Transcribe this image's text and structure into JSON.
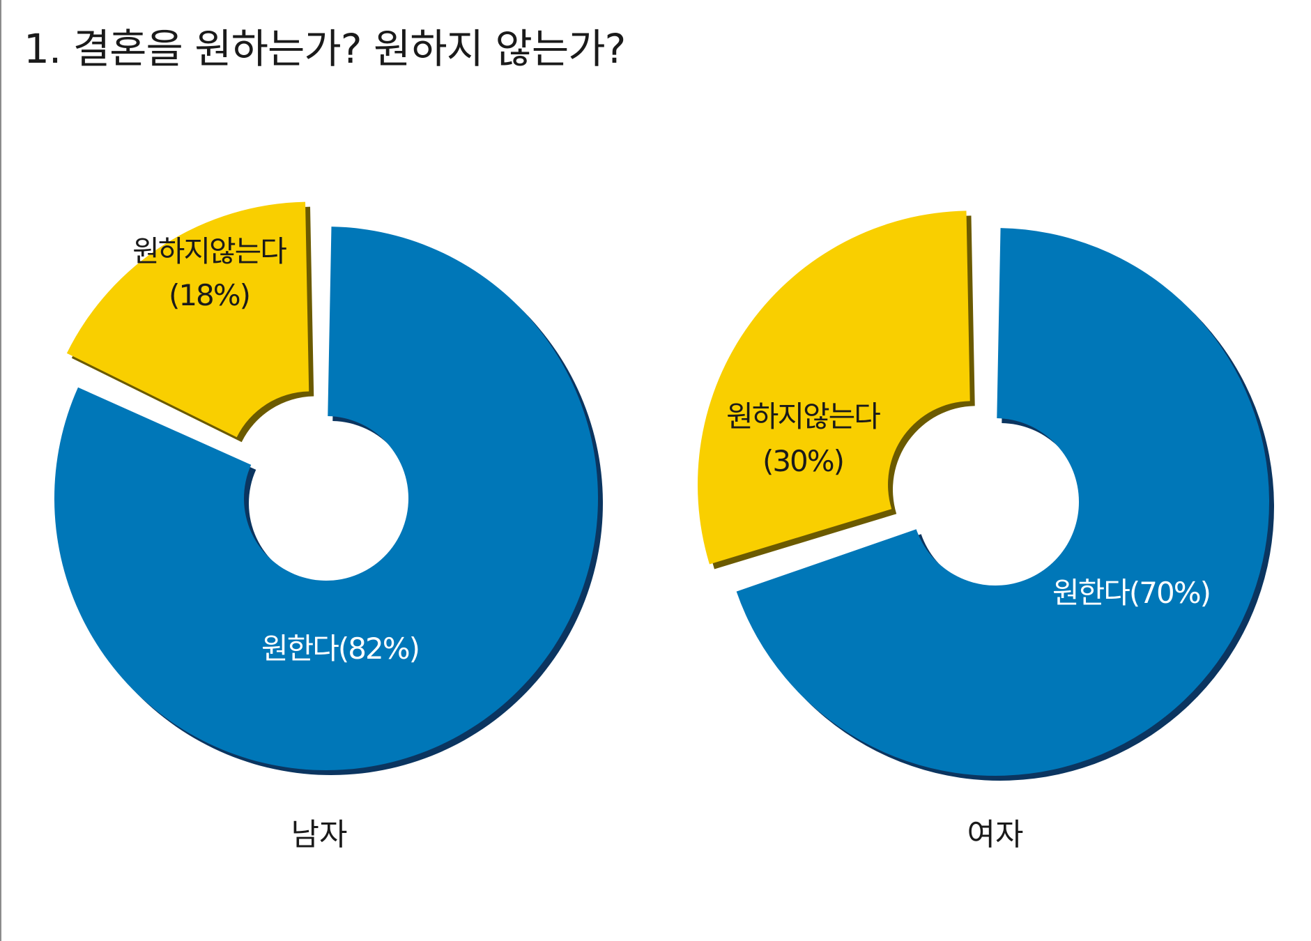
{
  "title": "1. 결혼을 원하는가? 원하지 않는가?",
  "colors": {
    "want": "#0077b8",
    "want_shadow": "#0b3560",
    "not_want": "#f9cf00",
    "not_want_shadow": "#6b5a00",
    "label_light": "#ffffff",
    "label_dark": "#1a1a1a"
  },
  "chart_data": [
    {
      "type": "pie",
      "style": "donut-exploded",
      "caption": "남자",
      "slices": [
        {
          "key": "want",
          "category": "원한다",
          "value": 82,
          "label": "원한다(82%)"
        },
        {
          "key": "not_want",
          "category": "원하지않는다",
          "value": 18,
          "label_line1": "원하지않는다",
          "label_line2": "(18%)"
        }
      ]
    },
    {
      "type": "pie",
      "style": "donut-exploded",
      "caption": "여자",
      "slices": [
        {
          "key": "want",
          "category": "원한다",
          "value": 70,
          "label": "원한다(70%)"
        },
        {
          "key": "not_want",
          "category": "원하지않는다",
          "value": 30,
          "label_line1": "원하지않는다",
          "label_line2": "(30%)"
        }
      ]
    }
  ]
}
